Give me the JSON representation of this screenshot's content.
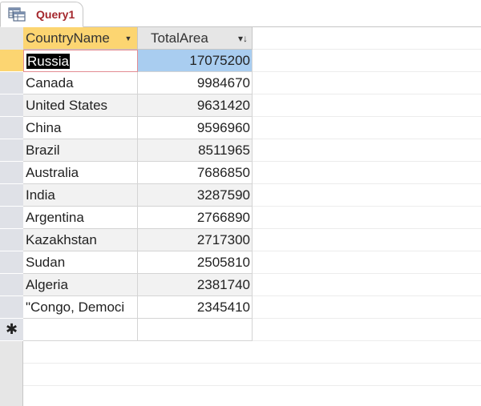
{
  "tab": {
    "label": "Query1",
    "icon": "datasheet-query-icon"
  },
  "columns": [
    {
      "label": "CountryName",
      "filter_icon": "dropdown-arrow-icon"
    },
    {
      "label": "TotalArea",
      "filter_icon": "sort-descending-icon"
    }
  ],
  "rows": [
    {
      "country": "Russia",
      "area": "17075200"
    },
    {
      "country": "Canada",
      "area": "9984670"
    },
    {
      "country": "United States",
      "area": "9631420"
    },
    {
      "country": "China",
      "area": "9596960"
    },
    {
      "country": "Brazil",
      "area": "8511965"
    },
    {
      "country": "Australia",
      "area": "7686850"
    },
    {
      "country": "India",
      "area": "3287590"
    },
    {
      "country": "Argentina",
      "area": "2766890"
    },
    {
      "country": "Kazakhstan",
      "area": "2717300"
    },
    {
      "country": "Sudan",
      "area": "2505810"
    },
    {
      "country": "Algeria",
      "area": "2381740"
    },
    {
      "country": "\"Congo, Democi",
      "area": "2345410"
    }
  ],
  "new_record_marker": "✱",
  "colors": {
    "tab_label": "#a4262c",
    "selected_header": "#fcd571",
    "current_record_selector": "#fcd571",
    "selected_cell": "#a9cdf0"
  }
}
